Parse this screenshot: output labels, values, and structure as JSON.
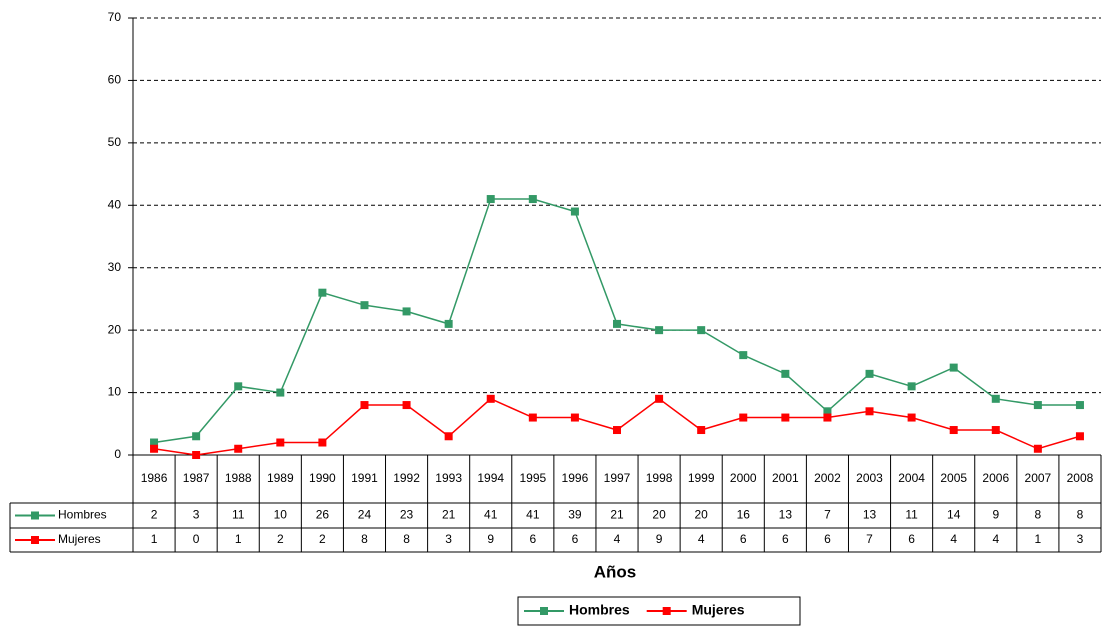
{
  "chart_data": {
    "type": "line",
    "x_label": "Años",
    "categories": [
      "1986",
      "1987",
      "1988",
      "1989",
      "1990",
      "1991",
      "1992",
      "1993",
      "1994",
      "1995",
      "1996",
      "1997",
      "1998",
      "1999",
      "2000",
      "2001",
      "2002",
      "2003",
      "2004",
      "2005",
      "2006",
      "2007",
      "2008"
    ],
    "series": [
      {
        "name": "Hombres",
        "color": "#339966",
        "values": [
          2,
          3,
          11,
          10,
          26,
          24,
          23,
          21,
          41,
          41,
          39,
          21,
          20,
          20,
          16,
          13,
          7,
          13,
          11,
          14,
          9,
          8,
          8
        ]
      },
      {
        "name": "Mujeres",
        "color": "#ff0000",
        "values": [
          1,
          0,
          1,
          2,
          2,
          8,
          8,
          3,
          9,
          6,
          6,
          4,
          9,
          4,
          6,
          6,
          6,
          7,
          6,
          4,
          4,
          1,
          3
        ]
      }
    ],
    "ylim": [
      0,
      70
    ],
    "yticks": [
      0,
      10,
      20,
      30,
      40,
      50,
      60,
      70
    ],
    "grid": true,
    "legend": "bottom"
  }
}
